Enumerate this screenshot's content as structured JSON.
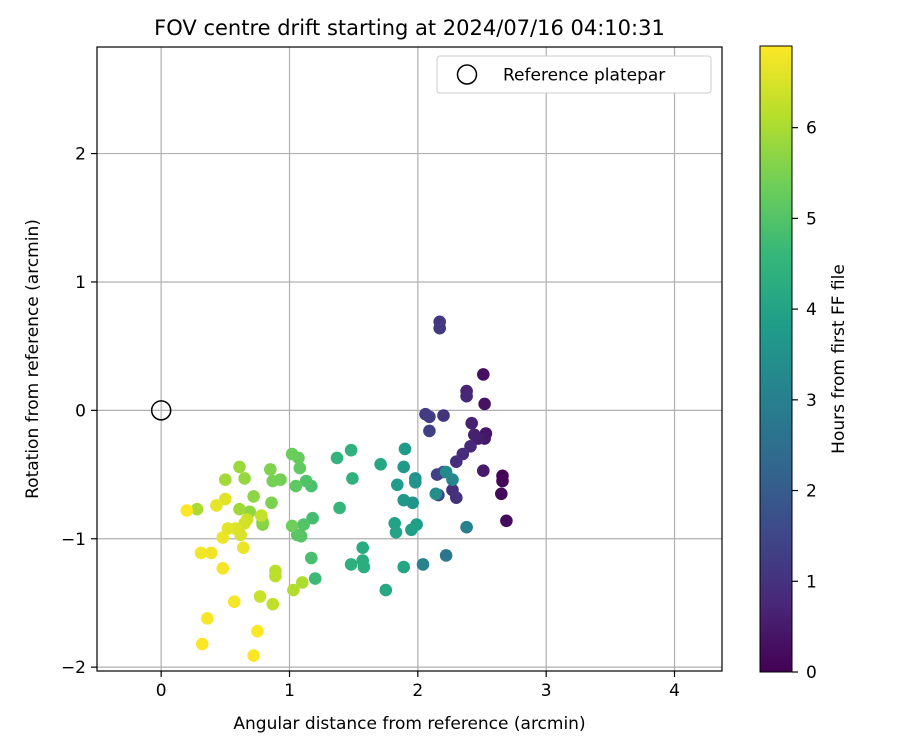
{
  "chart_data": {
    "type": "scatter",
    "title": "FOV centre drift starting at 2024/07/16 04:10:31",
    "xlabel": "Angular distance from reference (arcmin)",
    "ylabel": "Rotation from reference (arcmin)",
    "xlim": [
      -0.5,
      4.37
    ],
    "ylim": [
      -2.03,
      2.83
    ],
    "xticks": [
      0,
      1,
      2,
      3,
      4
    ],
    "yticks": [
      -2,
      -1,
      0,
      1,
      2
    ],
    "xtick_labels": [
      "0",
      "1",
      "2",
      "3",
      "4"
    ],
    "ytick_labels": [
      "−2",
      "−1",
      "0",
      "1",
      "2"
    ],
    "grid": true,
    "legend": {
      "position": "top-right",
      "label": "Reference platepar"
    },
    "reference_point": {
      "x": 0,
      "y": 0
    },
    "colorbar": {
      "label": "Hours from first FF file",
      "colormap": "viridis",
      "range": [
        0,
        6.9
      ],
      "ticks": [
        0,
        1,
        2,
        3,
        4,
        5,
        6
      ],
      "tick_labels": [
        "0",
        "1",
        "2",
        "3",
        "4",
        "5",
        "6"
      ],
      "colors": [
        "#440154",
        "#482878",
        "#3e4989",
        "#31688e",
        "#26828e",
        "#1f9e89",
        "#35b779",
        "#6ece58",
        "#b5de2b",
        "#fde725"
      ]
    },
    "points": [
      [
        2.66,
        -0.51,
        0.05
      ],
      [
        2.66,
        -0.55,
        0.1
      ],
      [
        2.65,
        -0.65,
        0.15
      ],
      [
        2.69,
        -0.86,
        0.2
      ],
      [
        2.51,
        0.28,
        0.3
      ],
      [
        2.52,
        0.05,
        0.35
      ],
      [
        2.53,
        -0.18,
        0.4
      ],
      [
        2.52,
        -0.22,
        0.45
      ],
      [
        2.51,
        -0.47,
        0.5
      ],
      [
        2.47,
        -0.22,
        0.55
      ],
      [
        2.44,
        -0.19,
        0.6
      ],
      [
        2.42,
        -0.1,
        0.65
      ],
      [
        2.38,
        0.15,
        0.7
      ],
      [
        2.38,
        0.11,
        0.75
      ],
      [
        2.41,
        -0.28,
        0.8
      ],
      [
        2.35,
        -0.34,
        0.85
      ],
      [
        2.3,
        -0.4,
        0.9
      ],
      [
        2.27,
        -0.62,
        0.95
      ],
      [
        2.3,
        -0.68,
        1.0
      ],
      [
        2.2,
        -0.04,
        1.05
      ],
      [
        2.17,
        0.69,
        1.1
      ],
      [
        2.17,
        0.64,
        1.15
      ],
      [
        2.06,
        -0.03,
        1.2
      ],
      [
        2.09,
        -0.05,
        1.25
      ],
      [
        2.09,
        -0.16,
        1.3
      ],
      [
        2.15,
        -0.5,
        1.35
      ],
      [
        2.2,
        -0.48,
        1.4
      ],
      [
        2.16,
        -0.66,
        1.5
      ],
      [
        2.22,
        -1.13,
        2.7
      ],
      [
        2.38,
        -0.91,
        3.0
      ],
      [
        2.04,
        -1.2,
        3.1
      ],
      [
        2.27,
        -0.54,
        3.2
      ],
      [
        2.22,
        -0.48,
        3.3
      ],
      [
        2.14,
        -0.65,
        3.4
      ],
      [
        1.98,
        -0.53,
        3.5
      ],
      [
        1.98,
        -0.56,
        3.55
      ],
      [
        1.96,
        -0.72,
        3.6
      ],
      [
        1.89,
        -0.7,
        3.65
      ],
      [
        1.89,
        -0.44,
        3.7
      ],
      [
        1.9,
        -0.3,
        3.75
      ],
      [
        1.84,
        -0.58,
        3.8
      ],
      [
        1.99,
        -0.89,
        3.85
      ],
      [
        1.95,
        -0.93,
        3.9
      ],
      [
        1.82,
        -0.88,
        3.95
      ],
      [
        1.83,
        -0.95,
        4.0
      ],
      [
        1.89,
        -1.22,
        4.05
      ],
      [
        1.71,
        -0.42,
        4.1
      ],
      [
        1.75,
        -1.4,
        4.15
      ],
      [
        1.57,
        -1.07,
        4.2
      ],
      [
        1.57,
        -1.17,
        4.25
      ],
      [
        1.58,
        -1.22,
        4.3
      ],
      [
        1.48,
        -1.2,
        4.35
      ],
      [
        1.48,
        -0.31,
        4.4
      ],
      [
        1.49,
        -0.53,
        4.45
      ],
      [
        1.37,
        -0.37,
        4.5
      ],
      [
        1.39,
        -0.76,
        4.55
      ],
      [
        1.2,
        -1.31,
        4.7
      ],
      [
        1.18,
        -0.84,
        4.8
      ],
      [
        1.17,
        -1.15,
        4.85
      ],
      [
        1.17,
        -0.59,
        4.9
      ],
      [
        1.13,
        -0.55,
        4.95
      ],
      [
        1.11,
        -0.89,
        5.0
      ],
      [
        1.09,
        -0.98,
        5.05
      ],
      [
        1.06,
        -0.97,
        5.1
      ],
      [
        1.05,
        -0.59,
        5.15
      ],
      [
        1.08,
        -0.45,
        5.2
      ],
      [
        1.07,
        -0.37,
        5.25
      ],
      [
        1.02,
        -0.34,
        5.3
      ],
      [
        1.02,
        -0.9,
        5.35
      ],
      [
        0.93,
        -0.54,
        5.4
      ],
      [
        0.87,
        -0.55,
        5.45
      ],
      [
        0.86,
        -0.72,
        5.5
      ],
      [
        0.85,
        -0.46,
        5.55
      ],
      [
        0.79,
        -0.89,
        5.6
      ],
      [
        0.79,
        -0.87,
        5.65
      ],
      [
        0.72,
        -0.67,
        5.7
      ],
      [
        0.69,
        -0.79,
        5.75
      ],
      [
        0.65,
        -0.53,
        5.8
      ],
      [
        0.61,
        -0.44,
        5.85
      ],
      [
        0.61,
        -0.77,
        5.9
      ],
      [
        0.5,
        -0.54,
        5.95
      ],
      [
        0.28,
        -0.77,
        6.0
      ],
      [
        1.1,
        -1.34,
        6.05
      ],
      [
        1.03,
        -1.4,
        6.1
      ],
      [
        0.89,
        -1.25,
        6.15
      ],
      [
        0.89,
        -1.29,
        6.2
      ],
      [
        0.87,
        -1.51,
        6.25
      ],
      [
        0.78,
        -0.82,
        6.3
      ],
      [
        0.77,
        -1.45,
        6.35
      ],
      [
        0.67,
        -0.85,
        6.4
      ],
      [
        0.65,
        -0.88,
        6.45
      ],
      [
        0.62,
        -0.97,
        6.5
      ],
      [
        0.58,
        -0.92,
        6.55
      ],
      [
        0.5,
        -0.69,
        6.6
      ],
      [
        0.52,
        -0.92,
        6.62
      ],
      [
        0.43,
        -0.74,
        6.65
      ],
      [
        0.48,
        -0.99,
        6.7
      ],
      [
        0.64,
        -1.07,
        6.72
      ],
      [
        0.39,
        -1.11,
        6.75
      ],
      [
        0.31,
        -1.11,
        6.78
      ],
      [
        0.48,
        -1.23,
        6.8
      ],
      [
        0.57,
        -1.49,
        6.82
      ],
      [
        0.36,
        -1.62,
        6.84
      ],
      [
        0.32,
        -1.82,
        6.86
      ],
      [
        0.75,
        -1.72,
        6.87
      ],
      [
        0.72,
        -1.91,
        6.88
      ],
      [
        0.2,
        -0.78,
        6.89
      ]
    ]
  }
}
